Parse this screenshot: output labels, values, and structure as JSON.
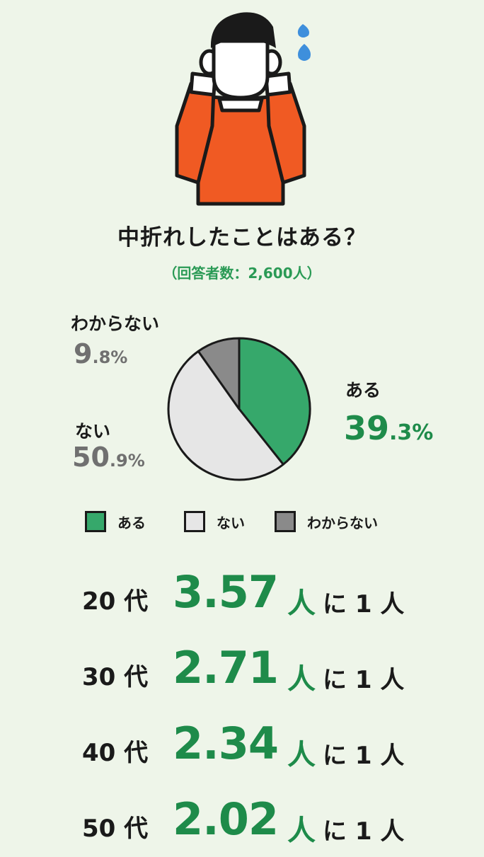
{
  "title": "中折れしたことはある？",
  "subtitle": "（回答者数：2,600人）",
  "colors": {
    "yes": "#36a86b",
    "no": "#e6e6e6",
    "unknown": "#8a8a8a",
    "accent": "#1e8b4a",
    "shirt": "#f05a23",
    "sweat": "#3e8fdc"
  },
  "chart_data": {
    "type": "pie",
    "title": "中折れしたことはある？",
    "slices": [
      {
        "name": "ある",
        "value": 39.3,
        "int": "39",
        "dec": ".3%",
        "color": "#36a86b"
      },
      {
        "name": "ない",
        "value": 50.9,
        "int": "50",
        "dec": ".9%",
        "color": "#e6e6e6"
      },
      {
        "name": "わからない",
        "value": 9.8,
        "int": "9",
        "dec": ".8%",
        "color": "#8a8a8a"
      }
    ],
    "legend": [
      "ある",
      "ない",
      "わからない"
    ],
    "legend_position": "bottom"
  },
  "ratios": [
    {
      "age": "20 代",
      "value": "3.57",
      "unit": "人",
      "suffix": "に 1 人"
    },
    {
      "age": "30 代",
      "value": "2.71",
      "unit": "人",
      "suffix": "に 1 人"
    },
    {
      "age": "40 代",
      "value": "2.34",
      "unit": "人",
      "suffix": "に 1 人"
    },
    {
      "age": "50 代",
      "value": "2.02",
      "unit": "人",
      "suffix": "に 1 人"
    }
  ]
}
